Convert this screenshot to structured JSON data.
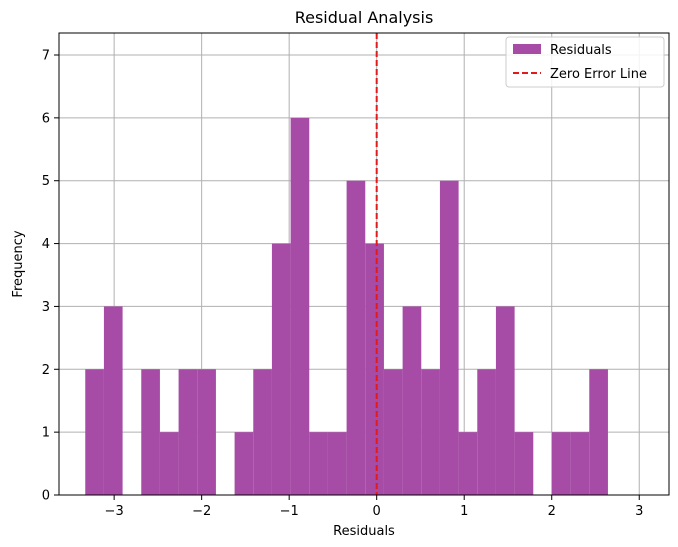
{
  "chart_data": {
    "type": "bar",
    "title": "Residual Analysis",
    "xlabel": "Residuals",
    "ylabel": "Frequency",
    "xlim": [
      -3.63,
      3.34
    ],
    "ylim": [
      0,
      7.35
    ],
    "grid": true,
    "legend_position": "top-right",
    "x_ticks": [
      {
        "value": -3,
        "label": "−3"
      },
      {
        "value": -2,
        "label": "−2"
      },
      {
        "value": -1,
        "label": "−1"
      },
      {
        "value": 0,
        "label": "0"
      },
      {
        "value": 1,
        "label": "1"
      },
      {
        "value": 2,
        "label": "2"
      },
      {
        "value": 3,
        "label": "3"
      }
    ],
    "y_ticks": [
      0,
      1,
      2,
      3,
      4,
      5,
      6,
      7
    ],
    "bin_start": -3.33,
    "bin_width": 0.2133,
    "counts": [
      2,
      3,
      0,
      2,
      1,
      2,
      2,
      0,
      1,
      2,
      4,
      6,
      1,
      1,
      5,
      4,
      2,
      3,
      2,
      5,
      1,
      2,
      3,
      1,
      0,
      1,
      1,
      2
    ],
    "series": [
      {
        "name": "Residuals",
        "type": "histogram",
        "color": "#a64ca6"
      },
      {
        "name": "Zero Error Line",
        "type": "vline",
        "x": 0,
        "color": "#e31a1c",
        "style": "dashed"
      }
    ]
  }
}
